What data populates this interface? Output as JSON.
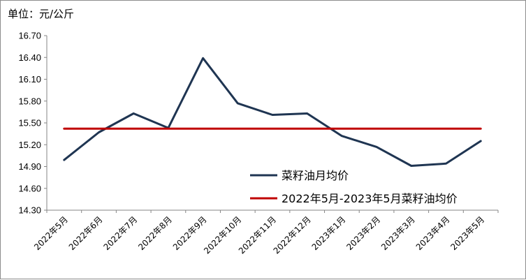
{
  "chart_data": {
    "type": "line",
    "unit_label": "单位：元/公斤",
    "categories": [
      "2022年5月",
      "2022年6月",
      "2022年7月",
      "2022年8月",
      "2022年9月",
      "2022年10月",
      "2022年11月",
      "2022年12月",
      "2023年1月",
      "2023年2月",
      "2023年3月",
      "2023年4月",
      "2023年5月"
    ],
    "series": [
      {
        "name": "菜籽油月均价",
        "color": "#1f3552",
        "values": [
          14.99,
          15.37,
          15.63,
          15.43,
          16.39,
          15.77,
          15.61,
          15.63,
          15.32,
          15.17,
          14.91,
          14.94,
          15.25
        ]
      },
      {
        "name": "2022年5月-2023年5月菜籽油均价",
        "color": "#c00000",
        "values": [
          15.42,
          15.42,
          15.42,
          15.42,
          15.42,
          15.42,
          15.42,
          15.42,
          15.42,
          15.42,
          15.42,
          15.42,
          15.42
        ]
      }
    ],
    "yticks": [
      "14.30",
      "14.60",
      "14.90",
      "15.20",
      "15.50",
      "15.80",
      "16.10",
      "16.40",
      "16.70"
    ],
    "ylim": [
      14.3,
      16.7
    ],
    "grid": false,
    "legend_position": "bottom-right"
  }
}
